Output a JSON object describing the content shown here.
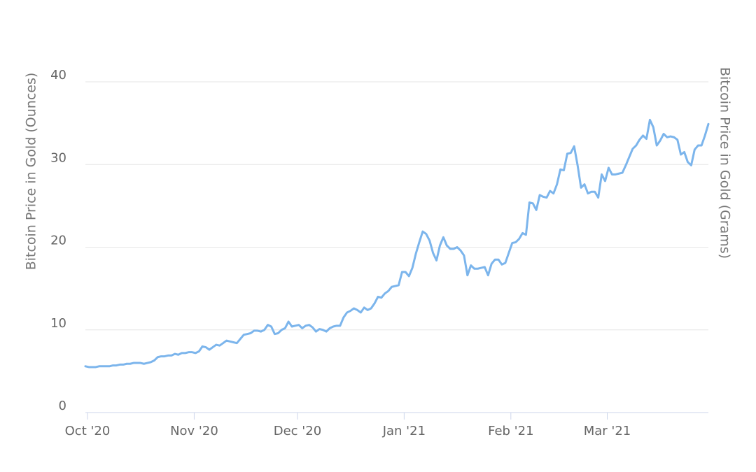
{
  "chart_data": {
    "type": "line",
    "y_axis_title": "Bitcoin Price in Gold (Ounces)",
    "y2_axis_title": "Bitcoin Price in Gold (Grams)",
    "categories": [
      "Oct '20",
      null,
      null,
      null,
      null,
      null,
      null,
      null,
      null,
      null,
      null,
      null,
      null,
      null,
      null,
      null,
      null,
      null,
      null,
      null,
      null,
      null,
      null,
      null,
      null,
      null,
      null,
      null,
      null,
      null,
      null,
      "Nov '20",
      null,
      null,
      null,
      null,
      null,
      null,
      null,
      null,
      null,
      null,
      null,
      null,
      null,
      null,
      null,
      null,
      null,
      null,
      null,
      null,
      null,
      null,
      null,
      null,
      null,
      null,
      null,
      null,
      null,
      "Dec '20",
      null,
      null,
      null,
      null,
      null,
      null,
      null,
      null,
      null,
      null,
      null,
      null,
      null,
      null,
      null,
      null,
      null,
      null,
      null,
      null,
      null,
      null,
      null,
      null,
      null,
      null,
      null,
      null,
      null,
      null,
      "Jan '21",
      null,
      null,
      null,
      null,
      null,
      null,
      null,
      null,
      null,
      null,
      null,
      null,
      null,
      null,
      null,
      null,
      null,
      null,
      null,
      null,
      null,
      null,
      null,
      null,
      null,
      null,
      null,
      null,
      null,
      null,
      "Feb '21",
      null,
      null,
      null,
      null,
      null,
      null,
      null,
      null,
      null,
      null,
      null,
      null,
      null,
      null,
      null,
      null,
      null,
      null,
      null,
      null,
      null,
      null,
      null,
      null,
      null,
      null,
      null,
      "Mar '21",
      null,
      null,
      null,
      null,
      null,
      null,
      null,
      null,
      null,
      null,
      null,
      null,
      null,
      null,
      null,
      null,
      null,
      null,
      null,
      null,
      null,
      null,
      null,
      null,
      null,
      null,
      null,
      null,
      null,
      null
    ],
    "series": [
      {
        "name": "Bitcoin Price in Gold",
        "color": "#7cb5ec",
        "values": [
          5.6,
          5.5,
          5.5,
          5.5,
          5.6,
          5.6,
          5.6,
          5.6,
          5.7,
          5.7,
          5.8,
          5.8,
          5.9,
          5.9,
          6.0,
          6.0,
          6.0,
          5.9,
          6.0,
          6.1,
          6.3,
          6.7,
          6.8,
          6.8,
          6.9,
          6.9,
          7.1,
          7.0,
          7.2,
          7.2,
          7.3,
          7.3,
          7.2,
          7.4,
          8.0,
          7.9,
          7.6,
          7.9,
          8.2,
          8.1,
          8.4,
          8.7,
          8.6,
          8.5,
          8.4,
          8.9,
          9.4,
          9.5,
          9.6,
          9.9,
          9.9,
          9.8,
          10.0,
          10.6,
          10.4,
          9.5,
          9.6,
          10.0,
          10.2,
          11.0,
          10.4,
          10.5,
          10.6,
          10.2,
          10.5,
          10.6,
          10.3,
          9.8,
          10.1,
          10.0,
          9.8,
          10.2,
          10.4,
          10.5,
          10.5,
          11.5,
          12.1,
          12.3,
          12.6,
          12.4,
          12.1,
          12.7,
          12.4,
          12.6,
          13.2,
          14.0,
          13.9,
          14.4,
          14.7,
          15.2,
          15.3,
          15.4,
          17.0,
          17.0,
          16.5,
          17.5,
          19.2,
          20.6,
          21.9,
          21.6,
          20.8,
          19.3,
          18.4,
          20.2,
          21.2,
          20.2,
          19.8,
          19.8,
          20.0,
          19.6,
          19.0,
          16.6,
          17.8,
          17.4,
          17.4,
          17.5,
          17.6,
          16.6,
          18.0,
          18.5,
          18.5,
          17.9,
          18.1,
          19.3,
          20.5,
          20.6,
          21.0,
          21.7,
          21.5,
          25.4,
          25.3,
          24.5,
          26.3,
          26.1,
          26.0,
          26.8,
          26.5,
          27.6,
          29.4,
          29.3,
          31.3,
          31.4,
          32.2,
          29.9,
          27.2,
          27.6,
          26.5,
          26.7,
          26.7,
          26.0,
          28.8,
          28.0,
          29.6,
          28.8,
          28.8,
          28.9,
          29.0,
          29.9,
          30.9,
          31.9,
          32.3,
          33.0,
          33.5,
          33.1,
          35.4,
          34.5,
          32.3,
          32.9,
          33.7,
          33.3,
          33.4,
          33.3,
          33.0,
          31.2,
          31.5,
          30.3,
          29.9,
          31.8,
          32.3,
          32.3,
          33.5,
          34.9
        ]
      }
    ],
    "ylim": [
      0,
      40
    ],
    "yticks": [
      0,
      10,
      20,
      30,
      40
    ],
    "grid": true
  }
}
